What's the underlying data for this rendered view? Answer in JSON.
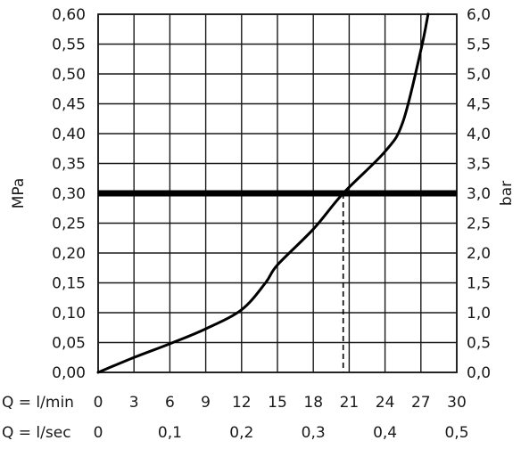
{
  "chart_data": {
    "type": "line",
    "left_axis": {
      "label": "MPa",
      "range": [
        0,
        0.6
      ],
      "ticks": [
        "0,00",
        "0,05",
        "0,10",
        "0,15",
        "0,20",
        "0,25",
        "0,30",
        "0,35",
        "0,40",
        "0,45",
        "0,50",
        "0,55",
        "0,60"
      ]
    },
    "right_axis": {
      "label": "bar",
      "range": [
        0,
        6
      ],
      "ticks": [
        "0,0",
        "0,5",
        "1,0",
        "1,5",
        "2,0",
        "2,5",
        "3,0",
        "3,5",
        "4,0",
        "4,5",
        "5,0",
        "5,5",
        "6,0"
      ]
    },
    "x_axis_lmin": {
      "prefix": "Q = l/min",
      "range": [
        0,
        30
      ],
      "ticks": [
        "0",
        "3",
        "6",
        "9",
        "12",
        "15",
        "18",
        "21",
        "24",
        "27",
        "30"
      ]
    },
    "x_axis_lsec": {
      "prefix": "Q = l/sec",
      "ticks": [
        {
          "label": "0",
          "value": 0
        },
        {
          "label": "0,1",
          "value": 0.1
        },
        {
          "label": "0,2",
          "value": 0.2
        },
        {
          "label": "0,3",
          "value": 0.3
        },
        {
          "label": "0,4",
          "value": 0.4
        },
        {
          "label": "0,5",
          "value": 0.5
        }
      ]
    },
    "grid": true,
    "series": [
      {
        "x": [
          0,
          3,
          6,
          9,
          12,
          14,
          15,
          18,
          20.5,
          24,
          25.5,
          27,
          27.6
        ],
        "y": [
          0.0,
          0.025,
          0.048,
          0.073,
          0.105,
          0.15,
          0.18,
          0.24,
          0.3,
          0.37,
          0.42,
          0.54,
          0.6
        ]
      }
    ],
    "reference_line_mpa": 0.3,
    "operating_point": {
      "x": 20.5,
      "y": 0.3
    }
  }
}
